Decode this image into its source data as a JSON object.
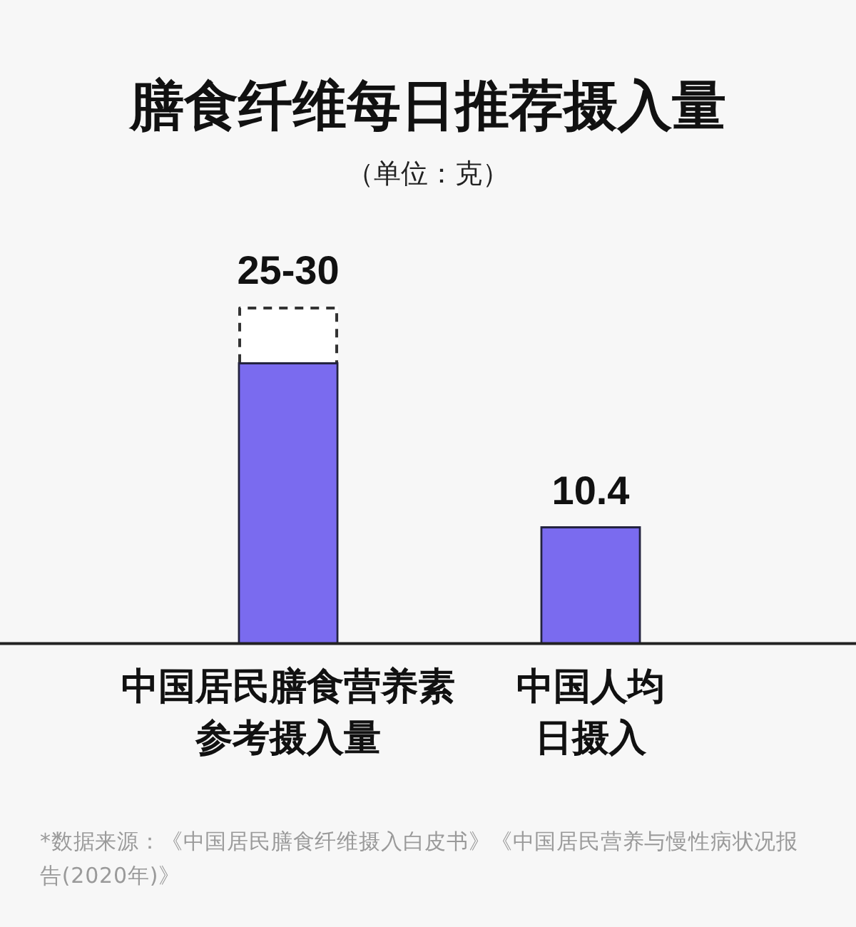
{
  "chart_data": {
    "type": "bar",
    "title": "膳食纤维每日推荐摄入量",
    "subtitle": "（单位：克）",
    "categories": [
      "中国居民膳食营养素参考摄入量",
      "中国人均日摄入"
    ],
    "stacked": true,
    "tick_labels": "x",
    "series": [
      {
        "color": "#7a6bef",
        "values": [
          25,
          10.4
        ],
        "value_labels": [
          null,
          "10.4"
        ]
      },
      {
        "color": "#ffffff",
        "line_style": "dashed",
        "values": [
          5,
          null
        ],
        "value_labels": [
          "25-30",
          null
        ]
      }
    ],
    "annotations": [
      "*数据来源：《中国居民膳食纤维摄入白皮书》《中国居民营养与慢性病状况报告(2020年)》"
    ]
  }
}
